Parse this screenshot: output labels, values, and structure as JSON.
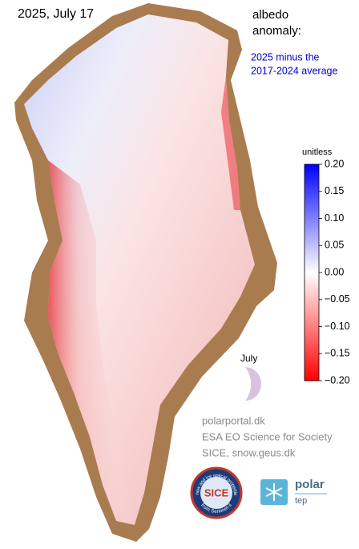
{
  "title": "2025, July 17",
  "legend": {
    "title_lines": [
      "albedo",
      "anomaly:"
    ],
    "subtitle_lines": [
      "2025 minus the",
      "2017-2024 average"
    ]
  },
  "colorbar": {
    "label": "unitless",
    "ylim": [
      -0.2,
      0.2
    ],
    "ticks": [
      {
        "value": 0.2,
        "label": "0.20"
      },
      {
        "value": 0.15,
        "label": "0.15"
      },
      {
        "value": 0.1,
        "label": "0.10"
      },
      {
        "value": 0.05,
        "label": "0.05"
      },
      {
        "value": 0,
        "label": "0.00"
      },
      {
        "value": -0.05,
        "label": "−0.05"
      },
      {
        "value": -0.1,
        "label": "−0.10"
      },
      {
        "value": -0.15,
        "label": "−0.15"
      },
      {
        "value": -0.2,
        "label": "−0.20"
      }
    ]
  },
  "season": {
    "label": "July"
  },
  "credits": [
    "polarportal.dk",
    "ESA EO Science for Society",
    "SICE, snow.geus.dk"
  ],
  "logos": {
    "sice": "SICE",
    "sice_top": "Snow and ice optical properties",
    "sice_bottom": "from Sentinel-3",
    "polar": "polar",
    "tep": "tep"
  }
}
